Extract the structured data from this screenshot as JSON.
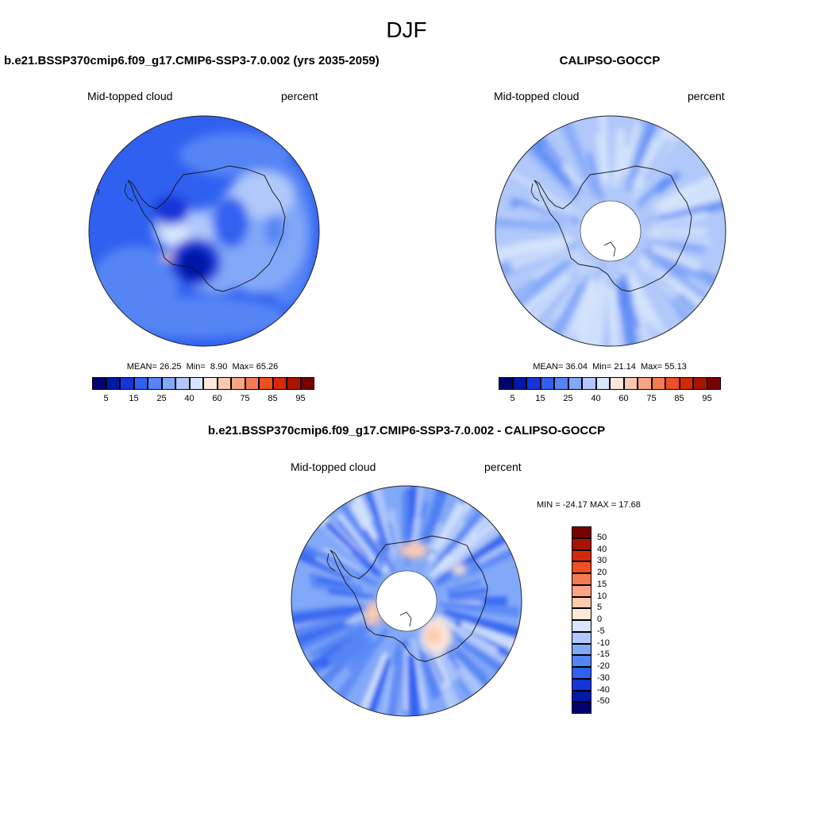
{
  "page": {
    "title": "DJF"
  },
  "panels": {
    "model": {
      "title": "b.e21.BSSP370cmip6.f09_g17.CMIP6-SSP3-7.0.002 (yrs 2035-2059)",
      "left_label": "Mid-topped cloud",
      "right_label": "percent",
      "stats": {
        "mean_label": "MEAN=",
        "mean": "26.25",
        "min_label": "Min=",
        "min": "8.90",
        "max_label": "Max=",
        "max": "65.26"
      }
    },
    "obs": {
      "title": "CALIPSO-GOCCP",
      "left_label": "Mid-topped cloud",
      "right_label": "percent",
      "stats": {
        "mean_label": "MEAN=",
        "mean": "36.04",
        "min_label": "Min=",
        "min": "21.14",
        "max_label": "Max=",
        "max": "55.13"
      }
    },
    "diff": {
      "title": "b.e21.BSSP370cmip6.f09_g17.CMIP6-SSP3-7.0.002 - CALIPSO-GOCCP",
      "left_label": "Mid-topped cloud",
      "right_label": "percent",
      "stats_text": "MIN = -24.17 MAX =  17.68"
    }
  },
  "colorbars": {
    "main": {
      "colors": [
        "#00006e",
        "#0019a6",
        "#1535d9",
        "#3060f0",
        "#5585f5",
        "#82a8f8",
        "#b0c8fa",
        "#d8e6fc",
        "#fde8dc",
        "#fccab0",
        "#f9a582",
        "#f67a52",
        "#ef4f24",
        "#d42a0a",
        "#a81400",
        "#780000"
      ],
      "tick_labels": [
        "5",
        "15",
        "25",
        "40",
        "60",
        "75",
        "85",
        "95"
      ]
    },
    "diff": {
      "colors": [
        "#780000",
        "#a81400",
        "#d42a0a",
        "#ef4f24",
        "#f67a52",
        "#f9a582",
        "#fccab0",
        "#fde8dc",
        "#d8e6fc",
        "#b0c8fa",
        "#82a8f8",
        "#5585f5",
        "#3060f0",
        "#1535d9",
        "#0019a6",
        "#00006e"
      ],
      "tick_labels": [
        "50",
        "40",
        "30",
        "20",
        "15",
        "10",
        "5",
        "0",
        "-5",
        "-10",
        "-15",
        "-20",
        "-30",
        "-40",
        "-50"
      ]
    }
  }
}
